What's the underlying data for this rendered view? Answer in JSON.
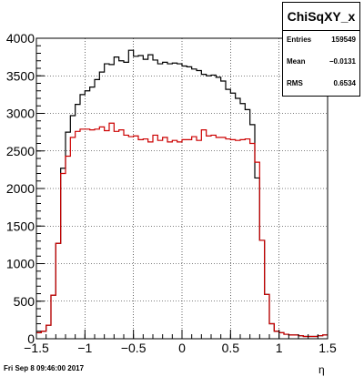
{
  "stats_box": {
    "title": "ChiSqXY_x",
    "rows": [
      {
        "label": "Entries",
        "value": "159549"
      },
      {
        "label": "Mean",
        "value": "−0.0131"
      },
      {
        "label": "RMS",
        "value": "0.6534"
      }
    ]
  },
  "footer": {
    "datestamp": "Fri Sep  8 09:46:00 2017"
  },
  "chart_data": {
    "type": "histogram",
    "title": "",
    "xlabel": "η",
    "ylabel": "",
    "xlim": [
      -1.5,
      1.5
    ],
    "ylim": [
      0,
      4000
    ],
    "xticks": [
      -1.5,
      -1,
      -0.5,
      0,
      0.5,
      1,
      1.5
    ],
    "xtick_labels": [
      "−1.5",
      "−1",
      "−0.5",
      "0",
      "0.5",
      "1",
      "1.5"
    ],
    "yticks": [
      0,
      500,
      1000,
      1500,
      2000,
      2500,
      3000,
      3500,
      4000
    ],
    "ytick_labels": [
      "0",
      "500",
      "1000",
      "1500",
      "2000",
      "2500",
      "3000",
      "3500",
      "4000"
    ],
    "grid": true,
    "bin_edges_start": -1.5,
    "bin_width": 0.05,
    "series": [
      {
        "color": "#000000",
        "values": [
          80,
          100,
          180,
          580,
          1270,
          2270,
          2750,
          2970,
          3120,
          3250,
          3300,
          3350,
          3450,
          3550,
          3660,
          3650,
          3750,
          3700,
          3680,
          3840,
          3760,
          3770,
          3720,
          3780,
          3710,
          3660,
          3680,
          3660,
          3670,
          3660,
          3630,
          3620,
          3590,
          3570,
          3520,
          3500,
          3510,
          3480,
          3430,
          3320,
          3270,
          3200,
          3130,
          3050,
          2850,
          2140,
          1310,
          590,
          200,
          100,
          80,
          60,
          50,
          50,
          40,
          30,
          30,
          30,
          40,
          50
        ]
      },
      {
        "color": "#cc0000",
        "values": [
          80,
          100,
          180,
          580,
          1270,
          2200,
          2430,
          2680,
          2760,
          2790,
          2790,
          2780,
          2790,
          2820,
          2770,
          2870,
          2760,
          2780,
          2710,
          2690,
          2700,
          2650,
          2660,
          2620,
          2710,
          2640,
          2680,
          2620,
          2640,
          2620,
          2650,
          2650,
          2690,
          2640,
          2780,
          2700,
          2710,
          2680,
          2680,
          2660,
          2650,
          2640,
          2650,
          2660,
          2600,
          2350,
          1310,
          590,
          200,
          100,
          80,
          60,
          50,
          50,
          40,
          30,
          30,
          30,
          40,
          50
        ]
      }
    ]
  }
}
